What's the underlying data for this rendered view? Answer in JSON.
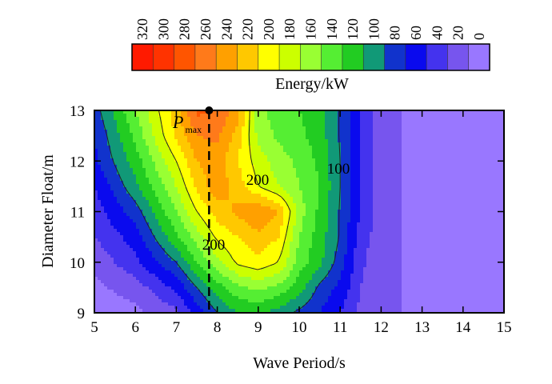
{
  "chart_data": {
    "type": "contour",
    "title": "",
    "xlabel": "Wave Period/s",
    "ylabel": "Diameter Float/m",
    "xlim": [
      5,
      15
    ],
    "ylim": [
      9,
      13
    ],
    "x_ticks": [
      "5",
      "6",
      "7",
      "8",
      "9",
      "10",
      "11",
      "12",
      "13",
      "14",
      "15"
    ],
    "y_ticks": [
      "9",
      "10",
      "11",
      "12",
      "13"
    ],
    "colorbar": {
      "label": "Energy/kW",
      "levels": [
        "320",
        "300",
        "280",
        "260",
        "240",
        "220",
        "200",
        "180",
        "160",
        "140",
        "120",
        "100",
        "80",
        "60",
        "40",
        "20",
        "0"
      ],
      "colors": [
        "#ff1a00",
        "#ff3300",
        "#ff5500",
        "#ff7a1a",
        "#ffa000",
        "#ffc800",
        "#ffff00",
        "#ccff00",
        "#99ff33",
        "#55ee33",
        "#22cc22",
        "#119977",
        "#1133cc",
        "#0a0aee",
        "#4433ee",
        "#7755ee",
        "#9977ff"
      ]
    },
    "contour_labels": [
      "200",
      "200",
      "100"
    ],
    "marker": {
      "label": "P",
      "subscript": "max",
      "x": 7.8,
      "y": 13
    },
    "ref_line_x": 7.8,
    "field": {
      "periods": [
        5,
        6,
        7,
        7.5,
        8,
        8.5,
        9,
        9.5,
        10,
        10.5,
        11,
        11.5,
        12,
        12.5,
        13,
        14,
        15
      ],
      "diameters": [
        9,
        9.5,
        10,
        10.5,
        11,
        11.5,
        12,
        12.5,
        13
      ],
      "energy": [
        [
          5,
          15,
          35,
          70,
          100,
          120,
          125,
          110,
          95,
          80,
          60,
          35,
          25,
          20,
          15,
          8,
          5
        ],
        [
          15,
          30,
          65,
          100,
          130,
          155,
          165,
          155,
          130,
          95,
          75,
          40,
          25,
          20,
          15,
          8,
          5
        ],
        [
          25,
          55,
          100,
          140,
          175,
          205,
          215,
          200,
          150,
          125,
          90,
          45,
          25,
          20,
          15,
          8,
          5
        ],
        [
          40,
          70,
          135,
          170,
          205,
          220,
          235,
          220,
          160,
          130,
          98,
          50,
          28,
          20,
          15,
          8,
          5
        ],
        [
          50,
          90,
          160,
          200,
          230,
          245,
          260,
          240,
          170,
          135,
          98,
          60,
          30,
          20,
          15,
          8,
          5
        ],
        [
          60,
          115,
          180,
          225,
          255,
          230,
          200,
          180,
          160,
          140,
          100,
          60,
          30,
          20,
          15,
          8,
          5
        ],
        [
          75,
          130,
          200,
          240,
          250,
          220,
          190,
          170,
          155,
          135,
          100,
          60,
          30,
          20,
          15,
          8,
          5
        ],
        [
          80,
          145,
          225,
          260,
          265,
          230,
          175,
          155,
          145,
          130,
          98,
          60,
          30,
          20,
          15,
          8,
          5
        ],
        [
          90,
          160,
          230,
          285,
          280,
          250,
          165,
          150,
          140,
          130,
          98,
          60,
          30,
          20,
          15,
          8,
          5
        ]
      ]
    }
  }
}
